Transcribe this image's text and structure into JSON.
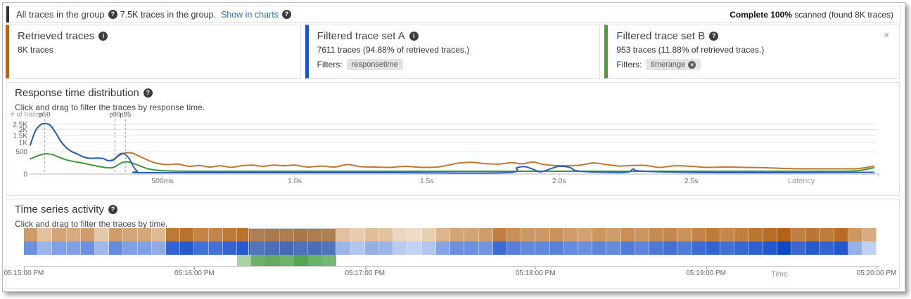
{
  "icons": {
    "help": "?",
    "info": "i",
    "close": "×",
    "filter_remove": "×"
  },
  "header": {
    "group_label": "All traces in the group",
    "group_info": "7.5K traces in the group.",
    "show_in_charts": "Show in charts",
    "scan_status_bold": "Complete 100%",
    "scan_status_rest": " scanned (found 8K traces)"
  },
  "cards": [
    {
      "title": "Retrieved traces",
      "icon": "info",
      "accent": "#b5651d",
      "line1": "8K traces",
      "filters_label": "",
      "filters": []
    },
    {
      "title": "Filtered trace set A",
      "icon": "info",
      "accent": "#1456cc",
      "line1": "7611 traces (94.88% of retrieved traces.)",
      "filters_label": "Filters:",
      "filters": [
        {
          "label": "responsetime",
          "removable": false
        }
      ]
    },
    {
      "title": "Filtered trace set B",
      "icon": "help",
      "accent": "#43a32e",
      "line1": "953 traces (11.88% of retrieved traces.)",
      "filters_label": "Filters:",
      "filters": [
        {
          "label": "timerange",
          "removable": true
        }
      ]
    }
  ],
  "response_panel": {
    "title": "Response time distribution",
    "subtitle": "Click and drag to filter the traces by response time."
  },
  "timeseries_panel": {
    "title": "Time series activity",
    "subtitle": "Click and drag to filter the traces by time."
  },
  "chart_data": [
    {
      "type": "line",
      "title": "Response time distribution",
      "xlabel": "Latency",
      "ylabel": "# of traces",
      "x_unit": "seconds",
      "xlim": [
        0,
        3.19
      ],
      "y_scale": "sqrt",
      "grid": true,
      "xticks": [
        {
          "v": 0.5,
          "label": "500ms"
        },
        {
          "v": 1.0,
          "label": "1.0s"
        },
        {
          "v": 1.5,
          "label": "1.5s"
        },
        {
          "v": 2.0,
          "label": "2.0s"
        },
        {
          "v": 2.5,
          "label": "2.5s"
        }
      ],
      "yticks": [
        {
          "v": 2500,
          "label": "2.5K"
        },
        {
          "v": 2000,
          "label": "2K"
        },
        {
          "v": 1500,
          "label": "1.5K"
        },
        {
          "v": 1000,
          "label": "1K"
        },
        {
          "v": 500,
          "label": "500"
        },
        {
          "v": 0,
          "label": "0"
        }
      ],
      "percentile_markers": [
        {
          "label": "p50",
          "x": 0.055
        },
        {
          "label": "p90",
          "x": 0.32
        },
        {
          "label": "p95",
          "x": 0.36
        }
      ],
      "series": [
        {
          "name": "Retrieved traces",
          "color": "#c0762c",
          "points": [
            [
              0,
              850
            ],
            [
              0.02,
              1900
            ],
            [
              0.04,
              2450
            ],
            [
              0.055,
              2580
            ],
            [
              0.075,
              2400
            ],
            [
              0.095,
              1750
            ],
            [
              0.115,
              1100
            ],
            [
              0.135,
              720
            ],
            [
              0.155,
              520
            ],
            [
              0.175,
              420
            ],
            [
              0.2,
              300
            ],
            [
              0.225,
              250
            ],
            [
              0.25,
              255
            ],
            [
              0.275,
              245
            ],
            [
              0.295,
              180
            ],
            [
              0.315,
              220
            ],
            [
              0.33,
              300
            ],
            [
              0.35,
              420
            ],
            [
              0.37,
              460
            ],
            [
              0.39,
              430
            ],
            [
              0.41,
              330
            ],
            [
              0.435,
              230
            ],
            [
              0.46,
              150
            ],
            [
              0.49,
              105
            ],
            [
              0.52,
              90
            ],
            [
              0.56,
              100
            ],
            [
              0.6,
              60
            ],
            [
              0.64,
              75
            ],
            [
              0.68,
              50
            ],
            [
              0.72,
              70
            ],
            [
              0.76,
              45
            ],
            [
              0.8,
              70
            ],
            [
              0.84,
              80
            ],
            [
              0.88,
              60
            ],
            [
              0.92,
              80
            ],
            [
              0.96,
              70
            ],
            [
              1.0,
              80
            ],
            [
              1.05,
              50
            ],
            [
              1.1,
              65
            ],
            [
              1.15,
              50
            ],
            [
              1.2,
              90
            ],
            [
              1.25,
              55
            ],
            [
              1.3,
              50
            ],
            [
              1.36,
              45
            ],
            [
              1.42,
              60
            ],
            [
              1.48,
              45
            ],
            [
              1.54,
              50
            ],
            [
              1.58,
              80
            ],
            [
              1.62,
              120
            ],
            [
              1.67,
              140
            ],
            [
              1.72,
              110
            ],
            [
              1.77,
              100
            ],
            [
              1.82,
              130
            ],
            [
              1.86,
              105
            ],
            [
              1.9,
              145
            ],
            [
              1.94,
              95
            ],
            [
              1.98,
              75
            ],
            [
              2.03,
              70
            ],
            [
              2.08,
              80
            ],
            [
              2.13,
              125
            ],
            [
              2.18,
              90
            ],
            [
              2.23,
              65
            ],
            [
              2.28,
              75
            ],
            [
              2.33,
              75
            ],
            [
              2.38,
              45
            ],
            [
              2.44,
              70
            ],
            [
              2.5,
              60
            ],
            [
              2.56,
              45
            ],
            [
              2.63,
              50
            ],
            [
              2.7,
              45
            ],
            [
              2.78,
              40
            ],
            [
              2.87,
              30
            ],
            [
              2.96,
              28
            ],
            [
              3.06,
              28
            ],
            [
              3.13,
              30
            ],
            [
              3.19,
              65
            ]
          ]
        },
        {
          "name": "Filtered trace set A",
          "color": "#2a5fb8",
          "points": [
            [
              0,
              850
            ],
            [
              0.02,
              1900
            ],
            [
              0.04,
              2450
            ],
            [
              0.055,
              2580
            ],
            [
              0.075,
              2400
            ],
            [
              0.095,
              1750
            ],
            [
              0.115,
              1100
            ],
            [
              0.135,
              720
            ],
            [
              0.155,
              520
            ],
            [
              0.175,
              420
            ],
            [
              0.2,
              300
            ],
            [
              0.225,
              250
            ],
            [
              0.25,
              255
            ],
            [
              0.275,
              245
            ],
            [
              0.295,
              180
            ],
            [
              0.315,
              200
            ],
            [
              0.33,
              330
            ],
            [
              0.345,
              430
            ],
            [
              0.36,
              380
            ],
            [
              0.375,
              230
            ],
            [
              0.39,
              60
            ],
            [
              0.405,
              8
            ],
            [
              0.43,
              2
            ],
            [
              0.9,
              2
            ],
            [
              1.4,
              2
            ],
            [
              1.8,
              2
            ],
            [
              1.84,
              40
            ],
            [
              1.87,
              55
            ],
            [
              1.9,
              25
            ],
            [
              1.93,
              5
            ],
            [
              1.97,
              30
            ],
            [
              2.0,
              60
            ],
            [
              2.04,
              45
            ],
            [
              2.08,
              8
            ],
            [
              2.25,
              3
            ],
            [
              2.28,
              25
            ],
            [
              2.32,
              8
            ],
            [
              2.6,
              2
            ],
            [
              3.19,
              3
            ]
          ]
        },
        {
          "name": "Filtered trace set B",
          "color": "#3a9639",
          "points": [
            [
              0,
              230
            ],
            [
              0.03,
              340
            ],
            [
              0.055,
              410
            ],
            [
              0.08,
              395
            ],
            [
              0.105,
              300
            ],
            [
              0.13,
              220
            ],
            [
              0.16,
              165
            ],
            [
              0.2,
              120
            ],
            [
              0.24,
              75
            ],
            [
              0.28,
              45
            ],
            [
              0.31,
              40
            ],
            [
              0.33,
              80
            ],
            [
              0.35,
              140
            ],
            [
              0.37,
              150
            ],
            [
              0.39,
              115
            ],
            [
              0.42,
              60
            ],
            [
              0.45,
              25
            ],
            [
              0.5,
              12
            ],
            [
              0.6,
              8
            ],
            [
              0.8,
              8
            ],
            [
              1.0,
              8
            ],
            [
              1.5,
              8
            ],
            [
              2.0,
              8
            ],
            [
              2.5,
              8
            ],
            [
              3.0,
              8
            ],
            [
              3.12,
              10
            ],
            [
              3.19,
              40
            ]
          ]
        }
      ]
    },
    {
      "type": "heatmap",
      "title": "Time series activity",
      "xlabel": "Time",
      "bucket_seconds": 5,
      "xticks": [
        "05:15:00 PM",
        "05:16:00 PM",
        "05:17:00 PM",
        "05:18:00 PM",
        "05:19:00 PM",
        "05:20:00 PM"
      ],
      "rows": [
        {
          "name": "Retrieved traces",
          "color_low": "#f7ecdc",
          "color_high": "#ae5c0e",
          "values": [
            55,
            30,
            50,
            45,
            55,
            25,
            55,
            48,
            48,
            35,
            80,
            85,
            72,
            72,
            80,
            85,
            70,
            75,
            72,
            78,
            72,
            70,
            30,
            22,
            32,
            30,
            15,
            12,
            20,
            38,
            50,
            50,
            55,
            75,
            65,
            58,
            58,
            62,
            55,
            52,
            60,
            55,
            65,
            60,
            68,
            70,
            62,
            72,
            78,
            70,
            75,
            82,
            88,
            95,
            75,
            82,
            78,
            88,
            60,
            45
          ]
        },
        {
          "name": "Filtered trace set A",
          "color_low": "#dfe9f9",
          "color_high": "#0e47c8",
          "values": [
            55,
            32,
            45,
            45,
            55,
            30,
            58,
            45,
            45,
            38,
            82,
            88,
            75,
            75,
            82,
            88,
            70,
            75,
            78,
            72,
            75,
            70,
            32,
            22,
            36,
            32,
            18,
            14,
            22,
            42,
            55,
            55,
            52,
            78,
            65,
            60,
            60,
            65,
            58,
            55,
            62,
            58,
            68,
            62,
            70,
            75,
            68,
            78,
            82,
            75,
            80,
            85,
            90,
            100,
            80,
            88,
            82,
            90,
            35,
            15
          ]
        }
      ],
      "selection": {
        "name": "Filtered trace set B",
        "color_low": "#cfe8c8",
        "color_high": "#2e8f2e",
        "start_index": 15.8,
        "end_index": 22,
        "green_cells_start": 15,
        "green_values": [
          25,
          62,
          68,
          60,
          75,
          62,
          55
        ]
      }
    }
  ]
}
